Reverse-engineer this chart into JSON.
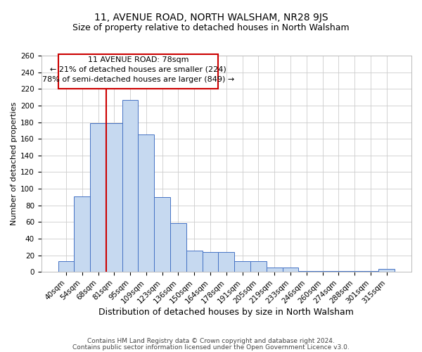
{
  "title": "11, AVENUE ROAD, NORTH WALSHAM, NR28 9JS",
  "subtitle": "Size of property relative to detached houses in North Walsham",
  "xlabel": "Distribution of detached houses by size in North Walsham",
  "ylabel": "Number of detached properties",
  "bar_labels": [
    "40sqm",
    "54sqm",
    "68sqm",
    "81sqm",
    "95sqm",
    "109sqm",
    "123sqm",
    "136sqm",
    "150sqm",
    "164sqm",
    "178sqm",
    "191sqm",
    "205sqm",
    "219sqm",
    "233sqm",
    "246sqm",
    "260sqm",
    "274sqm",
    "288sqm",
    "301sqm",
    "315sqm"
  ],
  "bar_values": [
    13,
    91,
    179,
    179,
    207,
    165,
    90,
    59,
    26,
    24,
    24,
    13,
    13,
    5,
    5,
    1,
    1,
    1,
    1,
    1,
    4
  ],
  "bar_color": "#c6d9f0",
  "bar_edge_color": "#4472c4",
  "vline_x_index": 3,
  "vline_color": "#cc0000",
  "ann_line1": "11 AVENUE ROAD: 78sqm",
  "ann_line2": "← 21% of detached houses are smaller (224)",
  "ann_line3": "78% of semi-detached houses are larger (849) →",
  "footer1": "Contains HM Land Registry data © Crown copyright and database right 2024.",
  "footer2": "Contains public sector information licensed under the Open Government Licence v3.0.",
  "ylim": [
    0,
    260
  ],
  "yticks": [
    0,
    20,
    40,
    60,
    80,
    100,
    120,
    140,
    160,
    180,
    200,
    220,
    240,
    260
  ],
  "title_fontsize": 10,
  "subtitle_fontsize": 9,
  "xlabel_fontsize": 9,
  "ylabel_fontsize": 8,
  "tick_fontsize": 7.5,
  "footer_fontsize": 6.5,
  "annotation_fontsize": 8,
  "grid_color": "#cccccc",
  "background_color": "#ffffff"
}
